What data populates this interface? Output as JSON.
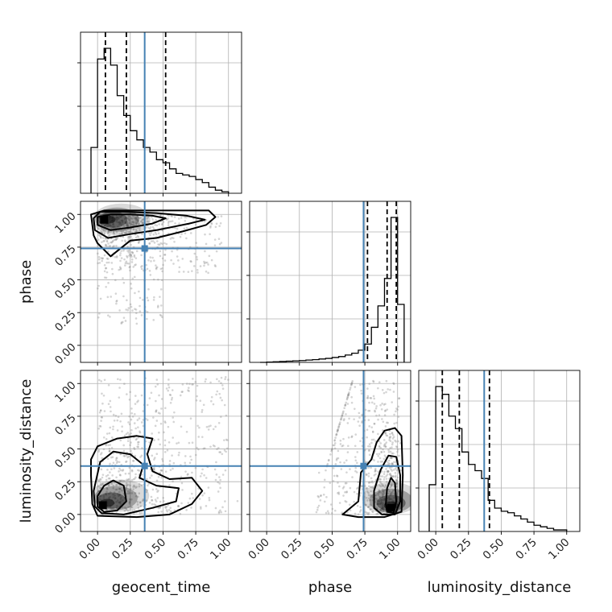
{
  "chart_data": {
    "type": "corner",
    "parameters": [
      "geocent_time",
      "phase",
      "luminosity_distance"
    ],
    "truths": {
      "geocent_time": 0.36,
      "phase": 0.74,
      "luminosity_distance": 0.37
    },
    "tick_values": [
      0.0,
      0.25,
      0.5,
      0.75,
      1.0
    ],
    "tick_labels": [
      "0.00",
      "0.25",
      "0.50",
      "0.75",
      "1.00"
    ],
    "axis_range": [
      -0.13,
      1.1
    ],
    "grid": true,
    "marginals": [
      {
        "parameter": "geocent_time",
        "bin_edges": [
          -0.05,
          0.0,
          0.05,
          0.1,
          0.15,
          0.2,
          0.25,
          0.3,
          0.35,
          0.4,
          0.45,
          0.5,
          0.55,
          0.6,
          0.65,
          0.7,
          0.75,
          0.8,
          0.85,
          0.9,
          0.95,
          1.0
        ],
        "counts": [
          0.3,
          0.88,
          0.95,
          0.84,
          0.64,
          0.51,
          0.41,
          0.35,
          0.3,
          0.27,
          0.22,
          0.2,
          0.16,
          0.13,
          0.12,
          0.11,
          0.09,
          0.07,
          0.04,
          0.02,
          0.01
        ],
        "quantiles": [
          0.06,
          0.22,
          0.52
        ]
      },
      {
        "parameter": "phase",
        "bin_edges": [
          -0.05,
          0.0,
          0.05,
          0.1,
          0.15,
          0.2,
          0.25,
          0.3,
          0.35,
          0.4,
          0.45,
          0.5,
          0.55,
          0.6,
          0.65,
          0.7,
          0.75,
          0.8,
          0.85,
          0.9,
          0.95,
          1.0,
          1.05
        ],
        "counts": [
          0.0,
          0.002,
          0.004,
          0.006,
          0.008,
          0.01,
          0.012,
          0.015,
          0.018,
          0.022,
          0.026,
          0.032,
          0.038,
          0.048,
          0.06,
          0.08,
          0.12,
          0.23,
          0.37,
          0.55,
          0.95,
          0.38
        ],
        "quantiles": [
          0.77,
          0.92,
          0.99
        ]
      },
      {
        "parameter": "luminosity_distance",
        "bin_edges": [
          -0.05,
          0.0,
          0.05,
          0.1,
          0.15,
          0.2,
          0.25,
          0.3,
          0.35,
          0.4,
          0.45,
          0.5,
          0.55,
          0.6,
          0.65,
          0.7,
          0.75,
          0.8,
          0.85,
          0.9,
          0.95,
          1.0
        ],
        "counts": [
          0.3,
          0.93,
          0.88,
          0.74,
          0.66,
          0.51,
          0.43,
          0.39,
          0.34,
          0.2,
          0.15,
          0.13,
          0.12,
          0.1,
          0.08,
          0.06,
          0.04,
          0.03,
          0.02,
          0.01,
          0.01
        ],
        "quantiles": [
          0.05,
          0.18,
          0.41
        ]
      }
    ],
    "joint": [
      {
        "x": "geocent_time",
        "y": "phase",
        "peak": [
          0.05,
          0.96
        ],
        "contours": [
          [
            [
              0.0,
              0.92
            ],
            [
              0.1,
              0.88
            ],
            [
              0.25,
              0.9
            ],
            [
              0.42,
              0.93
            ],
            [
              0.52,
              0.97
            ],
            [
              0.42,
              0.99
            ],
            [
              0.25,
              1.0
            ],
            [
              0.1,
              1.0
            ],
            [
              0.0,
              0.98
            ]
          ],
          [
            [
              -0.02,
              0.88
            ],
            [
              0.08,
              0.82
            ],
            [
              0.25,
              0.85
            ],
            [
              0.45,
              0.88
            ],
            [
              0.7,
              0.93
            ],
            [
              0.82,
              0.96
            ],
            [
              0.68,
              0.99
            ],
            [
              0.45,
              1.01
            ],
            [
              0.2,
              1.02
            ],
            [
              0.02,
              1.02
            ],
            [
              -0.03,
              0.97
            ]
          ],
          [
            [
              -0.03,
              0.84
            ],
            [
              0.0,
              0.78
            ],
            [
              0.05,
              0.73
            ],
            [
              0.1,
              0.68
            ],
            [
              0.15,
              0.72
            ],
            [
              0.25,
              0.8
            ],
            [
              0.45,
              0.82
            ],
            [
              0.65,
              0.87
            ],
            [
              0.83,
              0.92
            ],
            [
              0.9,
              0.98
            ],
            [
              0.85,
              1.03
            ],
            [
              0.6,
              1.03
            ],
            [
              0.3,
              1.03
            ],
            [
              0.05,
              1.03
            ],
            [
              -0.05,
              1.0
            ]
          ]
        ]
      },
      {
        "x": "geocent_time",
        "y": "luminosity_distance",
        "peak": [
          0.04,
          0.07
        ],
        "contours": [
          [
            [
              0.0,
              0.06
            ],
            [
              0.05,
              0.02
            ],
            [
              0.15,
              0.03
            ],
            [
              0.22,
              0.1
            ],
            [
              0.2,
              0.22
            ],
            [
              0.12,
              0.26
            ],
            [
              0.05,
              0.22
            ],
            [
              0.0,
              0.14
            ]
          ],
          [
            [
              -0.03,
              0.18
            ],
            [
              -0.02,
              0.06
            ],
            [
              0.03,
              0.01
            ],
            [
              0.2,
              0.0
            ],
            [
              0.42,
              0.05
            ],
            [
              0.6,
              0.1
            ],
            [
              0.62,
              0.2
            ],
            [
              0.45,
              0.22
            ],
            [
              0.32,
              0.28
            ],
            [
              0.35,
              0.38
            ],
            [
              0.25,
              0.46
            ],
            [
              0.12,
              0.48
            ],
            [
              0.02,
              0.4
            ]
          ],
          [
            [
              -0.05,
              0.3
            ],
            [
              -0.04,
              0.08
            ],
            [
              0.0,
              -0.01
            ],
            [
              0.3,
              -0.02
            ],
            [
              0.55,
              0.0
            ],
            [
              0.72,
              0.08
            ],
            [
              0.8,
              0.18
            ],
            [
              0.72,
              0.28
            ],
            [
              0.55,
              0.27
            ],
            [
              0.42,
              0.33
            ],
            [
              0.38,
              0.46
            ],
            [
              0.42,
              0.58
            ],
            [
              0.3,
              0.6
            ],
            [
              0.15,
              0.58
            ],
            [
              0.0,
              0.52
            ],
            [
              -0.05,
              0.42
            ]
          ]
        ]
      },
      {
        "x": "phase",
        "y": "luminosity_distance",
        "peak": [
          0.95,
          0.05
        ],
        "contours": [
          [
            [
              0.92,
              0.02
            ],
            [
              0.97,
              0.01
            ],
            [
              0.99,
              0.1
            ],
            [
              0.98,
              0.24
            ],
            [
              0.95,
              0.28
            ],
            [
              0.92,
              0.2
            ],
            [
              0.91,
              0.08
            ]
          ],
          [
            [
              0.82,
              0.05
            ],
            [
              0.88,
              0.0
            ],
            [
              0.98,
              0.0
            ],
            [
              1.02,
              0.1
            ],
            [
              1.02,
              0.3
            ],
            [
              0.99,
              0.44
            ],
            [
              0.93,
              0.45
            ],
            [
              0.87,
              0.34
            ],
            [
              0.82,
              0.18
            ]
          ],
          [
            [
              0.58,
              0.0
            ],
            [
              0.7,
              0.1
            ],
            [
              0.72,
              0.32
            ],
            [
              0.8,
              0.42
            ],
            [
              0.84,
              0.55
            ],
            [
              0.9,
              0.64
            ],
            [
              0.98,
              0.66
            ],
            [
              1.03,
              0.6
            ],
            [
              1.04,
              0.3
            ],
            [
              1.03,
              0.02
            ],
            [
              0.9,
              -0.02
            ],
            [
              0.7,
              -0.02
            ]
          ]
        ]
      }
    ]
  }
}
